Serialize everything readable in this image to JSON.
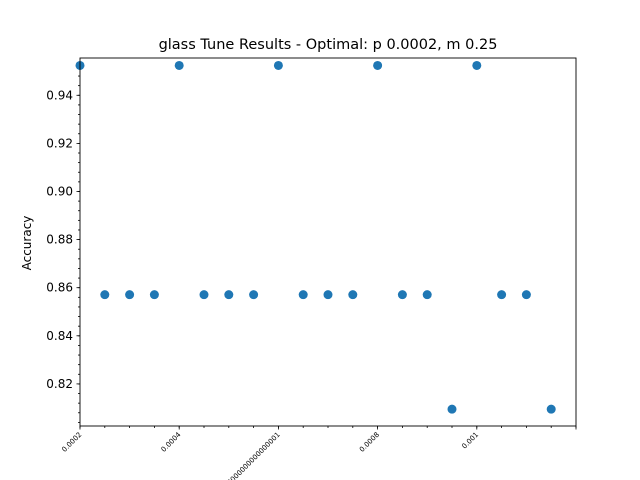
{
  "chart_data": {
    "type": "scatter",
    "title": "glass Tune Results - Optimal: p 0.0002, m 0.25",
    "xlabel": "",
    "ylabel": "Accuracy",
    "xlim": [
      0.0002,
      0.0012
    ],
    "ylim": [
      0.8025,
      0.9555
    ],
    "yticks": [
      0.82,
      0.84,
      0.86,
      0.88,
      0.9,
      0.92,
      0.94
    ],
    "ytick_labels": [
      "0.82",
      "0.84",
      "0.86",
      "0.88",
      "0.90",
      "0.92",
      "0.94"
    ],
    "yminor_step": 0.004,
    "xticks": [
      0.0002,
      0.0004,
      0.0006,
      0.0008,
      0.001,
      0.0012
    ],
    "xtick_labels": [
      "0.0002",
      "0.0004",
      "0.0006000000000000001",
      "0.0008",
      "0.001",
      ""
    ],
    "xminor_step": 5e-05,
    "grid": false,
    "color": "#1f77b4",
    "points": [
      {
        "x": 0.0002,
        "y": 0.9524
      },
      {
        "x": 0.00025,
        "y": 0.8571
      },
      {
        "x": 0.0003,
        "y": 0.8571
      },
      {
        "x": 0.00035,
        "y": 0.8571
      },
      {
        "x": 0.0004,
        "y": 0.9524
      },
      {
        "x": 0.00045,
        "y": 0.8571
      },
      {
        "x": 0.0005,
        "y": 0.8571
      },
      {
        "x": 0.00055,
        "y": 0.8571
      },
      {
        "x": 0.0006,
        "y": 0.9524
      },
      {
        "x": 0.00065,
        "y": 0.8571
      },
      {
        "x": 0.0007,
        "y": 0.8571
      },
      {
        "x": 0.00075,
        "y": 0.8571
      },
      {
        "x": 0.0008,
        "y": 0.9524
      },
      {
        "x": 0.00085,
        "y": 0.8571
      },
      {
        "x": 0.0009,
        "y": 0.8571
      },
      {
        "x": 0.00095,
        "y": 0.8095
      },
      {
        "x": 0.001,
        "y": 0.9524
      },
      {
        "x": 0.00105,
        "y": 0.8571
      },
      {
        "x": 0.0011,
        "y": 0.8571
      },
      {
        "x": 0.00115,
        "y": 0.8095
      }
    ]
  }
}
